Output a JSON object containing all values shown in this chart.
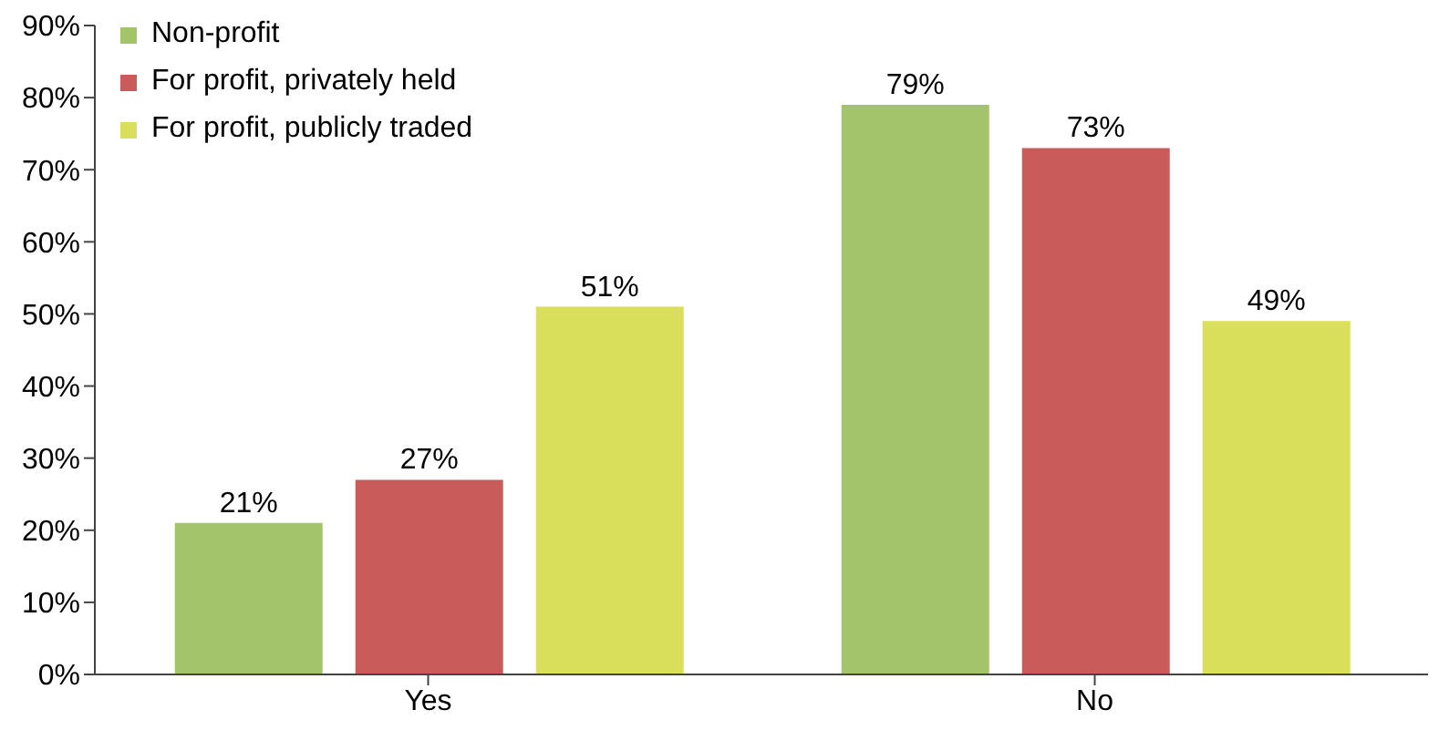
{
  "chart_data": {
    "type": "bar",
    "categories": [
      "Yes",
      "No"
    ],
    "series": [
      {
        "name": "Non-profit",
        "color": "#a3c46a",
        "values": [
          21,
          79
        ],
        "value_labels": [
          "21%",
          "79%"
        ]
      },
      {
        "name": "For profit, privately held",
        "color": "#c95b5b",
        "values": [
          27,
          73
        ],
        "value_labels": [
          "27%",
          "73%"
        ]
      },
      {
        "name": "For profit, publicly traded",
        "color": "#d9df5a",
        "values": [
          51,
          49
        ],
        "value_labels": [
          "51%",
          "49%"
        ]
      }
    ],
    "ylim": [
      0,
      90
    ],
    "yticks": [
      {
        "value": 0,
        "label": "0%"
      },
      {
        "value": 10,
        "label": "10%"
      },
      {
        "value": 20,
        "label": "20%"
      },
      {
        "value": 30,
        "label": "30%"
      },
      {
        "value": 40,
        "label": "40%"
      },
      {
        "value": 50,
        "label": "50%"
      },
      {
        "value": 60,
        "label": "60%"
      },
      {
        "value": 70,
        "label": "70%"
      },
      {
        "value": 80,
        "label": "80%"
      },
      {
        "value": 90,
        "label": "90%"
      }
    ],
    "legend": "top left"
  }
}
